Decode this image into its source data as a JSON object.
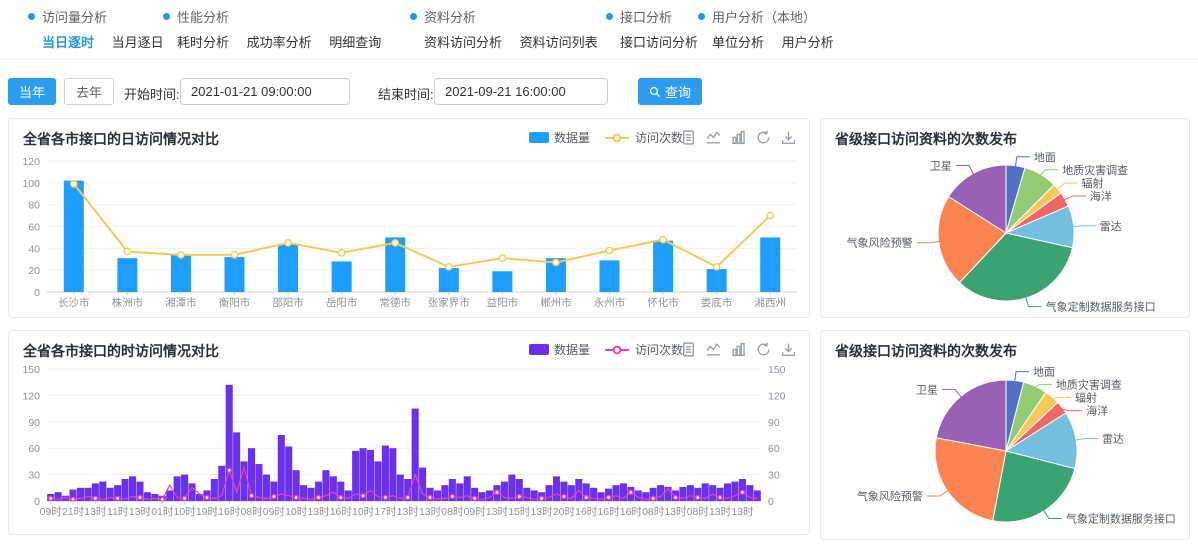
{
  "nav": {
    "groups": [
      {
        "title": "访问量分析",
        "items": [
          {
            "label": "当日逐时",
            "active": true
          },
          {
            "label": "当月逐日",
            "active": false
          }
        ]
      },
      {
        "title": "性能分析",
        "items": [
          {
            "label": "耗时分析"
          },
          {
            "label": "成功率分析"
          },
          {
            "label": "明细查询"
          }
        ]
      },
      {
        "title": "资料分析",
        "items": [
          {
            "label": "资料访问分析"
          },
          {
            "label": "资料访问列表"
          }
        ]
      },
      {
        "title": "接口分析",
        "items": [
          {
            "label": "接口访问分析"
          }
        ]
      },
      {
        "title": "用户分析（本地）",
        "items": [
          {
            "label": "单位分析"
          },
          {
            "label": "用户分析"
          }
        ]
      }
    ]
  },
  "filters": {
    "this_year_button": "当年",
    "last_year_button": "去年",
    "start_label": "开始时间:",
    "start_value": "2021-01-21 09:00:00",
    "end_label": "结束时间:",
    "end_value": "2021-09-21 16:00:00",
    "search_button": "查询",
    "search_icon": "search-icon"
  },
  "toolbox_icons": [
    "data-view",
    "line-chart",
    "bar-chart",
    "restore",
    "download"
  ],
  "colors": {
    "accent_blue": "#2d9cf0",
    "nav_active": "#2196f3",
    "daily_bar": "#1e9fff",
    "daily_line": "#fac858",
    "hourly_bar": "#6a30ec",
    "hourly_line": "#ee3fc1",
    "pie_palette": [
      "#5470c6",
      "#91cc75",
      "#fac858",
      "#ee6666",
      "#73c0de",
      "#3ba272",
      "#fc8452",
      "#9a60b4"
    ]
  },
  "chart_data": [
    {
      "type": "bar",
      "title": "全省各市接口的日访问情况对比",
      "categories": [
        "长沙市",
        "株洲市",
        "湘潭市",
        "衡阳市",
        "邵阳市",
        "岳阳市",
        "常德市",
        "张家界市",
        "益阳市",
        "郴州市",
        "永州市",
        "怀化市",
        "娄底市",
        "湘西州"
      ],
      "series": [
        {
          "name": "数据量",
          "type": "bar",
          "color": "#1e9fff",
          "values": [
            102,
            31,
            34,
            32,
            44,
            28,
            50,
            22,
            19,
            31,
            29,
            47,
            21,
            50
          ]
        },
        {
          "name": "访问次数",
          "type": "line",
          "color": "#fac858",
          "values": [
            99,
            37,
            34,
            34,
            45,
            36,
            45,
            23,
            31,
            27,
            38,
            48,
            23,
            70
          ]
        }
      ],
      "ylim": [
        0,
        120
      ],
      "yticks": [
        0,
        20,
        40,
        60,
        80,
        100,
        120
      ],
      "xlabel": "",
      "ylabel": "",
      "grid": true,
      "legend_position": "top-center-right"
    },
    {
      "type": "bar",
      "title": "全省各市接口的时访问情况对比",
      "categories": [
        "09时",
        "21时",
        "13时",
        "11时",
        "13时",
        "01时",
        "10时",
        "19时",
        "16时",
        "08时",
        "09时",
        "10时",
        "13时",
        "16时",
        "10时",
        "17时",
        "13时",
        "13时",
        "08时",
        "09时",
        "13时",
        "15时",
        "13时",
        "20时",
        "16时",
        "16时",
        "16时",
        "08时",
        "13时",
        "08时",
        "13时",
        "13时"
      ],
      "category_note": "one tick label per 3 bars, 96 bars total",
      "series": [
        {
          "name": "数据量",
          "type": "bar",
          "color": "#6a30ec",
          "values": [
            8,
            10,
            6,
            13,
            15,
            15,
            20,
            22,
            15,
            18,
            25,
            28,
            22,
            10,
            8,
            6,
            12,
            28,
            30,
            20,
            8,
            12,
            25,
            40,
            132,
            78,
            45,
            60,
            42,
            30,
            22,
            75,
            62,
            35,
            18,
            15,
            22,
            35,
            28,
            22,
            12,
            57,
            60,
            58,
            45,
            63,
            60,
            30,
            25,
            105,
            38,
            15,
            12,
            18,
            25,
            20,
            28,
            15,
            10,
            12,
            18,
            22,
            30,
            25,
            15,
            12,
            10,
            18,
            28,
            22,
            18,
            25,
            20,
            15,
            10,
            14,
            18,
            20,
            16,
            12,
            10,
            15,
            18,
            16,
            12,
            16,
            18,
            15,
            20,
            18,
            15,
            20,
            22,
            25,
            18,
            12
          ]
        },
        {
          "name": "访问次数",
          "type": "line",
          "color": "#ee3fc1",
          "values": [
            3,
            2,
            4,
            2,
            3,
            5,
            3,
            2,
            4,
            3,
            2,
            5,
            4,
            2,
            3,
            2,
            18,
            4,
            3,
            15,
            8,
            4,
            3,
            6,
            35,
            10,
            38,
            6,
            4,
            3,
            5,
            8,
            6,
            4,
            3,
            2,
            4,
            6,
            10,
            4,
            3,
            8,
            6,
            12,
            5,
            4,
            6,
            3,
            4,
            30,
            8,
            4,
            2,
            3,
            5,
            4,
            6,
            3,
            2,
            4,
            10,
            4,
            3,
            5,
            4,
            2,
            3,
            4,
            8,
            5,
            3,
            12,
            4,
            3,
            2,
            4,
            6,
            3,
            10,
            4,
            2,
            3,
            5,
            14,
            4,
            3,
            6,
            4,
            3,
            8,
            4,
            3,
            6,
            10,
            4,
            3
          ]
        }
      ],
      "ylim": [
        0,
        150
      ],
      "yticks": [
        0,
        30,
        60,
        90,
        120,
        150
      ],
      "dual_y_axis": true,
      "xlabel": "",
      "ylabel": "",
      "grid": true,
      "legend_position": "top-center-right"
    },
    {
      "type": "pie",
      "title": "省级接口访问资料的次数发布",
      "labels": [
        "地面",
        "地质灾害调查",
        "辐射",
        "海洋",
        "雷达",
        "气象定制数据服务接口",
        "气象风险预警",
        "卫星"
      ],
      "values": [
        4.5,
        8,
        2.5,
        3.5,
        10,
        33.5,
        22,
        16
      ],
      "values_unit": "percent_estimate",
      "colors": [
        "#5470c6",
        "#91cc75",
        "#fac858",
        "#ee6666",
        "#73c0de",
        "#3ba272",
        "#fc8452",
        "#9a60b4"
      ]
    },
    {
      "type": "pie",
      "title": "省级接口访问资料的次数发布",
      "labels": [
        "地面",
        "地质灾害调查",
        "辐射",
        "海洋",
        "雷达",
        "气象定制数据服务接口",
        "气象风险预警",
        "卫星"
      ],
      "values": [
        4,
        5.5,
        3.5,
        3,
        13,
        24,
        25,
        22
      ],
      "values_unit": "percent_estimate",
      "colors": [
        "#5470c6",
        "#91cc75",
        "#fac858",
        "#ee6666",
        "#73c0de",
        "#3ba272",
        "#fc8452",
        "#9a60b4"
      ]
    }
  ]
}
